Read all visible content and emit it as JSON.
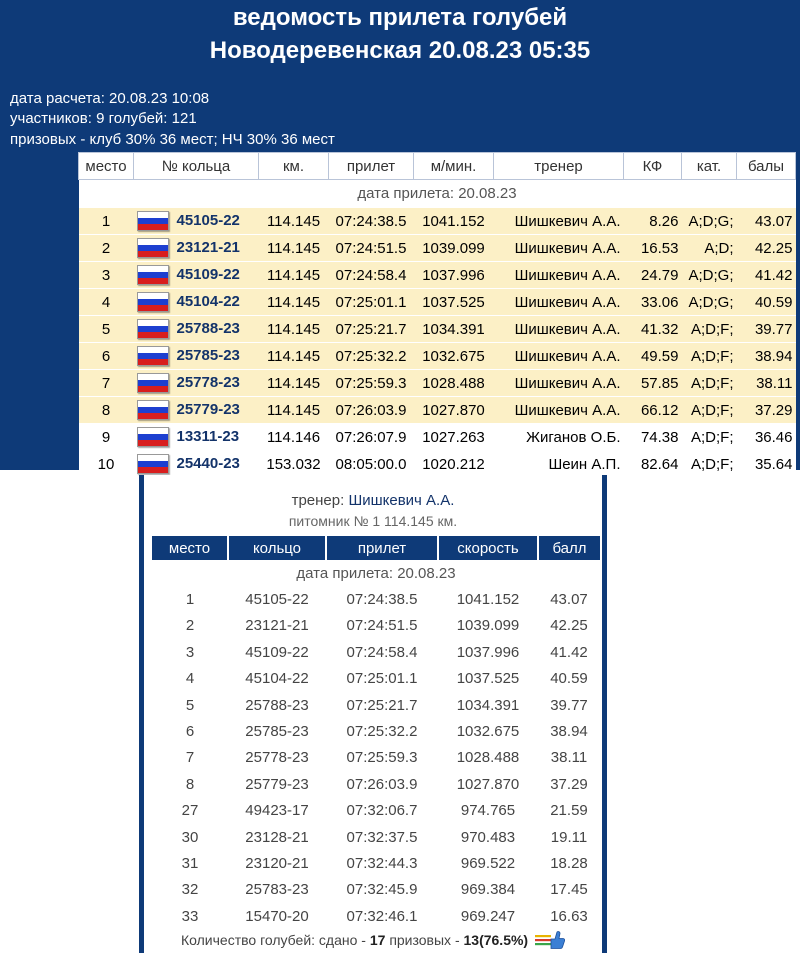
{
  "header": {
    "title": "ведомость прилета голубей",
    "subtitle": "Новодеревенская 20.08.23 05:35",
    "calc_date": "дата расчета: 20.08.23 10:08",
    "participants": "участников: 9 голубей: 121",
    "prizes": "призовых - клуб 30% 36 мест; НЧ 30% 36 мест"
  },
  "main_table": {
    "columns": [
      "место",
      "№ кольца",
      "км.",
      "прилет",
      "м/мин.",
      "тренер",
      "КФ",
      "кат.",
      "балы"
    ],
    "date_row": "дата прилета: 20.08.23",
    "rows": [
      {
        "place": "1",
        "ring": "45105-22",
        "km": "114.145",
        "arrival": "07:24:38.5",
        "speed": "1041.152",
        "trainer": "Шишкевич А.А.",
        "kf": "8.26",
        "cat": "A;D;G;",
        "points": "43.07",
        "highlight": true
      },
      {
        "place": "2",
        "ring": "23121-21",
        "km": "114.145",
        "arrival": "07:24:51.5",
        "speed": "1039.099",
        "trainer": "Шишкевич А.А.",
        "kf": "16.53",
        "cat": "A;D;",
        "points": "42.25",
        "highlight": true
      },
      {
        "place": "3",
        "ring": "45109-22",
        "km": "114.145",
        "arrival": "07:24:58.4",
        "speed": "1037.996",
        "trainer": "Шишкевич А.А.",
        "kf": "24.79",
        "cat": "A;D;G;",
        "points": "41.42",
        "highlight": true
      },
      {
        "place": "4",
        "ring": "45104-22",
        "km": "114.145",
        "arrival": "07:25:01.1",
        "speed": "1037.525",
        "trainer": "Шишкевич А.А.",
        "kf": "33.06",
        "cat": "A;D;G;",
        "points": "40.59",
        "highlight": true
      },
      {
        "place": "5",
        "ring": "25788-23",
        "km": "114.145",
        "arrival": "07:25:21.7",
        "speed": "1034.391",
        "trainer": "Шишкевич А.А.",
        "kf": "41.32",
        "cat": "A;D;F;",
        "points": "39.77",
        "highlight": true
      },
      {
        "place": "6",
        "ring": "25785-23",
        "km": "114.145",
        "arrival": "07:25:32.2",
        "speed": "1032.675",
        "trainer": "Шишкевич А.А.",
        "kf": "49.59",
        "cat": "A;D;F;",
        "points": "38.94",
        "highlight": true
      },
      {
        "place": "7",
        "ring": "25778-23",
        "km": "114.145",
        "arrival": "07:25:59.3",
        "speed": "1028.488",
        "trainer": "Шишкевич А.А.",
        "kf": "57.85",
        "cat": "A;D;F;",
        "points": "38.11",
        "highlight": true
      },
      {
        "place": "8",
        "ring": "25779-23",
        "km": "114.145",
        "arrival": "07:26:03.9",
        "speed": "1027.870",
        "trainer": "Шишкевич А.А.",
        "kf": "66.12",
        "cat": "A;D;F;",
        "points": "37.29",
        "highlight": true
      },
      {
        "place": "9",
        "ring": "13311-23",
        "km": "114.146",
        "arrival": "07:26:07.9",
        "speed": "1027.263",
        "trainer": "Жиганов О.Б.",
        "kf": "74.38",
        "cat": "A;D;F;",
        "points": "36.46",
        "highlight": false
      },
      {
        "place": "10",
        "ring": "25440-23",
        "km": "153.032",
        "arrival": "08:05:00.0",
        "speed": "1020.212",
        "trainer": "Шеин А.П.",
        "kf": "82.64",
        "cat": "A;D;F;",
        "points": "35.64",
        "highlight": false
      }
    ]
  },
  "trainer_popup": {
    "trainer_label": "тренер:",
    "trainer_name": "Шишкевич А.А.",
    "loft": "питомник № 1 114.145 км.",
    "columns": [
      "место",
      "кольцо",
      "прилет",
      "скорость",
      "балл"
    ],
    "date_row": "дата прилета: 20.08.23",
    "rows": [
      {
        "place": "1",
        "ring": "45105-22",
        "arrival": "07:24:38.5",
        "speed": "1041.152",
        "points": "43.07"
      },
      {
        "place": "2",
        "ring": "23121-21",
        "arrival": "07:24:51.5",
        "speed": "1039.099",
        "points": "42.25"
      },
      {
        "place": "3",
        "ring": "45109-22",
        "arrival": "07:24:58.4",
        "speed": "1037.996",
        "points": "41.42"
      },
      {
        "place": "4",
        "ring": "45104-22",
        "arrival": "07:25:01.1",
        "speed": "1037.525",
        "points": "40.59"
      },
      {
        "place": "5",
        "ring": "25788-23",
        "arrival": "07:25:21.7",
        "speed": "1034.391",
        "points": "39.77"
      },
      {
        "place": "6",
        "ring": "25785-23",
        "arrival": "07:25:32.2",
        "speed": "1032.675",
        "points": "38.94"
      },
      {
        "place": "7",
        "ring": "25778-23",
        "arrival": "07:25:59.3",
        "speed": "1028.488",
        "points": "38.11"
      },
      {
        "place": "8",
        "ring": "25779-23",
        "arrival": "07:26:03.9",
        "speed": "1027.870",
        "points": "37.29"
      },
      {
        "place": "27",
        "ring": "49423-17",
        "arrival": "07:32:06.7",
        "speed": "974.765",
        "points": "21.59"
      },
      {
        "place": "30",
        "ring": "23128-21",
        "arrival": "07:32:37.5",
        "speed": "970.483",
        "points": "19.11"
      },
      {
        "place": "31",
        "ring": "23120-21",
        "arrival": "07:32:44.3",
        "speed": "969.522",
        "points": "18.28"
      },
      {
        "place": "32",
        "ring": "25783-23",
        "arrival": "07:32:45.9",
        "speed": "969.384",
        "points": "17.45"
      },
      {
        "place": "33",
        "ring": "15470-20",
        "arrival": "07:32:46.1",
        "speed": "969.247",
        "points": "16.63"
      }
    ],
    "summary": {
      "prefix": "Количество голубей: сдано -",
      "submitted": "17",
      "middle": "призовых -",
      "prize": "13(76.5%)"
    }
  },
  "icons": {
    "flag": "russia-flag-icon",
    "thumb": "thumbs-up-icon"
  },
  "colors": {
    "header_bg": "#0e3a78",
    "highlight_row": "#fcf0c6",
    "ring_text": "#13336a"
  }
}
